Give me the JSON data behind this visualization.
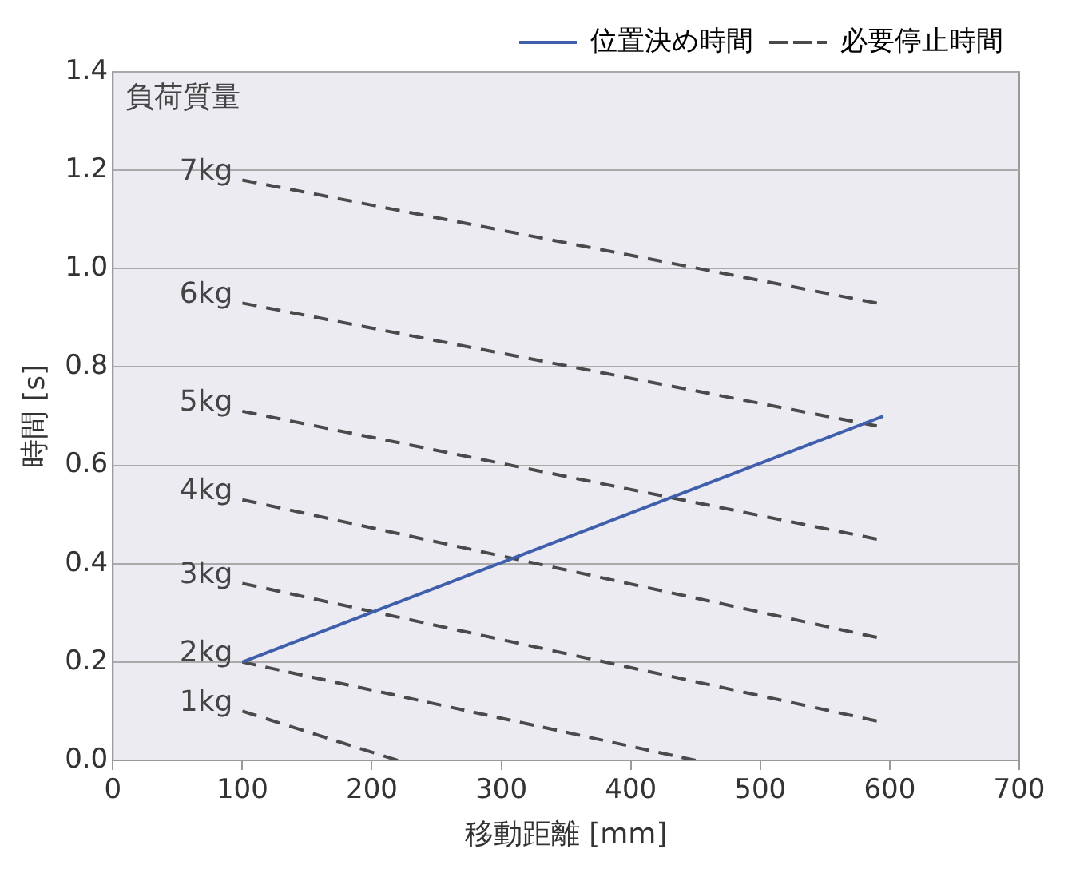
{
  "chart_data": {
    "type": "line",
    "xlabel": "移動距離 [mm]",
    "ylabel": "時間 [s]",
    "xlim": [
      0,
      700
    ],
    "xticks": [
      0,
      100,
      200,
      300,
      400,
      500,
      600,
      700
    ],
    "ylim": [
      0,
      1.4
    ],
    "yticks": [
      {
        "value": 0,
        "label": "0.0"
      },
      0.2,
      0.4,
      0.6,
      0.8,
      {
        "value": 1,
        "label": "1.0"
      },
      1.2,
      1.4
    ],
    "grid": "y",
    "legend": "top right",
    "marker": "none",
    "annotations": [
      "負荷質量",
      "7kg",
      "6kg",
      "5kg",
      "4kg",
      "3kg",
      "2kg",
      "1kg"
    ],
    "series": [
      {
        "name": "位置決め時間",
        "color": "#3f5fad",
        "line_style": "solid",
        "x": [
          100,
          595
        ],
        "values": [
          0.2,
          0.7
        ]
      },
      {
        "name": "必要停止時間",
        "color": "#4a4a4a",
        "line_style": "dashed",
        "x": [
          100,
          590
        ],
        "values": [
          1.18,
          0.93
        ]
      },
      {
        "color": "#4a4a4a",
        "line_style": "dashed",
        "x": [
          100,
          590
        ],
        "values": [
          0.93,
          0.68
        ]
      },
      {
        "color": "#4a4a4a",
        "line_style": "dashed",
        "x": [
          100,
          590
        ],
        "values": [
          0.71,
          0.45
        ]
      },
      {
        "color": "#4a4a4a",
        "line_style": "dashed",
        "x": [
          100,
          590
        ],
        "values": [
          0.53,
          0.25
        ]
      },
      {
        "color": "#4a4a4a",
        "line_style": "dashed",
        "x": [
          100,
          590
        ],
        "values": [
          0.36,
          0.08
        ]
      },
      {
        "color": "#4a4a4a",
        "line_style": "dashed",
        "x": [
          100,
          450
        ],
        "values": [
          0.2,
          0
        ]
      },
      {
        "color": "#4a4a4a",
        "line_style": "dashed",
        "x": [
          100,
          220
        ],
        "values": [
          0.1,
          0
        ]
      }
    ]
  }
}
